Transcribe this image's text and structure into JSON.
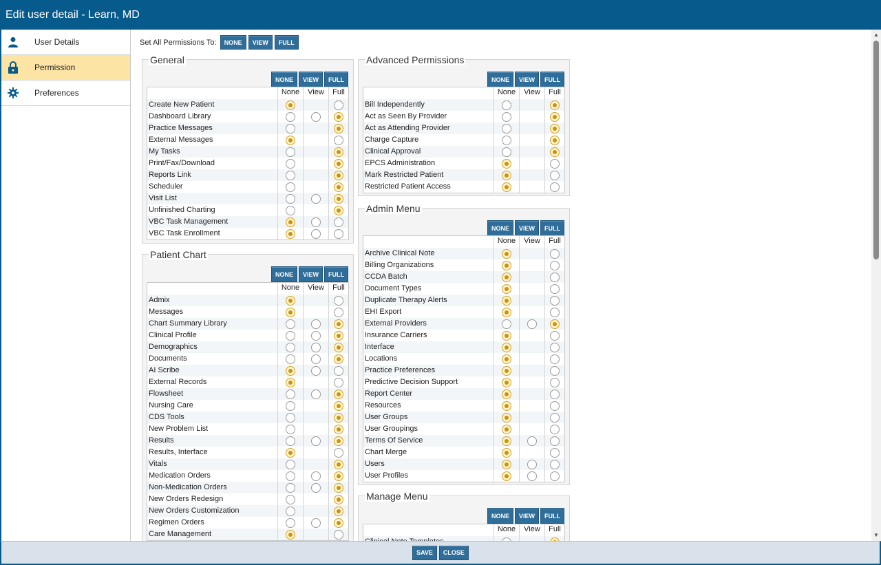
{
  "window": {
    "title": "Edit user detail - Learn, MD"
  },
  "sidebar": {
    "items": [
      {
        "label": "User Details",
        "icon": "person-icon"
      },
      {
        "label": "Permission",
        "icon": "lock-icon"
      },
      {
        "label": "Preferences",
        "icon": "gear-icon"
      }
    ]
  },
  "set_all": {
    "label": "Set All Permissions To:",
    "none": "NONE",
    "view": "VIEW",
    "full": "FULL"
  },
  "columns": {
    "none": "None",
    "view": "View",
    "full": "Full"
  },
  "buttons": {
    "none": "NONE",
    "view": "VIEW",
    "full": "FULL"
  },
  "colors": {
    "brand": "#065a8c",
    "active_tab": "#fbe4a4",
    "button": "#2f6e9a",
    "radio_selected": "#c9930f"
  },
  "sections": {
    "general": {
      "title": "General",
      "rows": [
        {
          "name": "Create New Patient",
          "opts": [
            "none",
            "full"
          ],
          "sel": "none"
        },
        {
          "name": "Dashboard Library",
          "opts": [
            "none",
            "view",
            "full"
          ],
          "sel": "full"
        },
        {
          "name": "Practice Messages",
          "opts": [
            "none",
            "full"
          ],
          "sel": "full"
        },
        {
          "name": "External Messages",
          "opts": [
            "none",
            "full"
          ],
          "sel": "none"
        },
        {
          "name": "My Tasks",
          "opts": [
            "none",
            "full"
          ],
          "sel": "full"
        },
        {
          "name": "Print/Fax/Download",
          "opts": [
            "none",
            "full"
          ],
          "sel": "full"
        },
        {
          "name": "Reports Link",
          "opts": [
            "none",
            "full"
          ],
          "sel": "full"
        },
        {
          "name": "Scheduler",
          "opts": [
            "none",
            "full"
          ],
          "sel": "full"
        },
        {
          "name": "Visit List",
          "opts": [
            "none",
            "view",
            "full"
          ],
          "sel": "full"
        },
        {
          "name": "Unfinished Charting",
          "opts": [
            "none",
            "full"
          ],
          "sel": "full"
        },
        {
          "name": "VBC Task Management",
          "opts": [
            "none",
            "view",
            "full"
          ],
          "sel": "none"
        },
        {
          "name": "VBC Task Enrollment",
          "opts": [
            "none",
            "view",
            "full"
          ],
          "sel": "none"
        }
      ]
    },
    "patient_chart": {
      "title": "Patient Chart",
      "rows": [
        {
          "name": "Admix",
          "opts": [
            "none",
            "full"
          ],
          "sel": "none"
        },
        {
          "name": "Messages",
          "opts": [
            "none",
            "full"
          ],
          "sel": "none"
        },
        {
          "name": "Chart Summary Library",
          "opts": [
            "none",
            "view",
            "full"
          ],
          "sel": "full"
        },
        {
          "name": "Clinical Profile",
          "opts": [
            "none",
            "view",
            "full"
          ],
          "sel": "full"
        },
        {
          "name": "Demographics",
          "opts": [
            "none",
            "view",
            "full"
          ],
          "sel": "full"
        },
        {
          "name": "Documents",
          "opts": [
            "none",
            "view",
            "full"
          ],
          "sel": "full"
        },
        {
          "name": "AI Scribe",
          "opts": [
            "none",
            "view",
            "full"
          ],
          "sel": "none"
        },
        {
          "name": "External Records",
          "opts": [
            "none",
            "full"
          ],
          "sel": "none"
        },
        {
          "name": "Flowsheet",
          "opts": [
            "none",
            "view",
            "full"
          ],
          "sel": "full"
        },
        {
          "name": "Nursing Care",
          "opts": [
            "none",
            "full"
          ],
          "sel": "full"
        },
        {
          "name": "CDS Tools",
          "opts": [
            "none",
            "full"
          ],
          "sel": "full"
        },
        {
          "name": "New Problem List",
          "opts": [
            "none",
            "full"
          ],
          "sel": "full"
        },
        {
          "name": "Results",
          "opts": [
            "none",
            "view",
            "full"
          ],
          "sel": "full"
        },
        {
          "name": "Results, Interface",
          "opts": [
            "none",
            "full"
          ],
          "sel": "none"
        },
        {
          "name": "Vitals",
          "opts": [
            "none",
            "full"
          ],
          "sel": "full"
        },
        {
          "name": "Medication Orders",
          "opts": [
            "none",
            "view",
            "full"
          ],
          "sel": "full"
        },
        {
          "name": "Non-Medication Orders",
          "opts": [
            "none",
            "view",
            "full"
          ],
          "sel": "full"
        },
        {
          "name": "New Orders Redesign",
          "opts": [
            "none",
            "full"
          ],
          "sel": "full"
        },
        {
          "name": "New Orders Customization",
          "opts": [
            "none",
            "full"
          ],
          "sel": "full"
        },
        {
          "name": "Regimen Orders",
          "opts": [
            "none",
            "view",
            "full"
          ],
          "sel": "full"
        },
        {
          "name": "Care Management",
          "opts": [
            "none",
            "full"
          ],
          "sel": "none"
        }
      ]
    },
    "advanced": {
      "title": "Advanced Permissions",
      "rows": [
        {
          "name": "Bill Independently",
          "opts": [
            "none",
            "full"
          ],
          "sel": "full"
        },
        {
          "name": "Act as Seen By Provider",
          "opts": [
            "none",
            "full"
          ],
          "sel": "full"
        },
        {
          "name": "Act as Attending Provider",
          "opts": [
            "none",
            "full"
          ],
          "sel": "full"
        },
        {
          "name": "Charge Capture",
          "opts": [
            "none",
            "full"
          ],
          "sel": "full"
        },
        {
          "name": "Clinical Approval",
          "opts": [
            "none",
            "full"
          ],
          "sel": "full"
        },
        {
          "name": "EPCS Administration",
          "opts": [
            "none",
            "full"
          ],
          "sel": "none"
        },
        {
          "name": "Mark Restricted Patient",
          "opts": [
            "none",
            "full"
          ],
          "sel": "none"
        },
        {
          "name": "Restricted Patient Access",
          "opts": [
            "none",
            "full"
          ],
          "sel": "none"
        }
      ]
    },
    "admin": {
      "title": "Admin Menu",
      "rows": [
        {
          "name": "Archive Clinical Note",
          "opts": [
            "none",
            "full"
          ],
          "sel": "none"
        },
        {
          "name": "Billing Organizations",
          "opts": [
            "none",
            "full"
          ],
          "sel": "none"
        },
        {
          "name": "CCDA Batch",
          "opts": [
            "none",
            "full"
          ],
          "sel": "none"
        },
        {
          "name": "Document Types",
          "opts": [
            "none",
            "full"
          ],
          "sel": "none"
        },
        {
          "name": "Duplicate Therapy Alerts",
          "opts": [
            "none",
            "full"
          ],
          "sel": "none"
        },
        {
          "name": "EHI Export",
          "opts": [
            "none",
            "full"
          ],
          "sel": "none"
        },
        {
          "name": "External Providers",
          "opts": [
            "none",
            "view",
            "full"
          ],
          "sel": "full"
        },
        {
          "name": "Insurance Carriers",
          "opts": [
            "none",
            "full"
          ],
          "sel": "none"
        },
        {
          "name": "Interface",
          "opts": [
            "none",
            "full"
          ],
          "sel": "none"
        },
        {
          "name": "Locations",
          "opts": [
            "none",
            "full"
          ],
          "sel": "none"
        },
        {
          "name": "Practice Preferences",
          "opts": [
            "none",
            "full"
          ],
          "sel": "none"
        },
        {
          "name": "Predictive Decision Support",
          "opts": [
            "none",
            "full"
          ],
          "sel": "none"
        },
        {
          "name": "Report Center",
          "opts": [
            "none",
            "full"
          ],
          "sel": "none"
        },
        {
          "name": "Resources",
          "opts": [
            "none",
            "full"
          ],
          "sel": "none"
        },
        {
          "name": "User Groups",
          "opts": [
            "none",
            "full"
          ],
          "sel": "none"
        },
        {
          "name": "User Groupings",
          "opts": [
            "none",
            "full"
          ],
          "sel": "none"
        },
        {
          "name": "Terms Of Service",
          "opts": [
            "none",
            "view",
            "full"
          ],
          "sel": "none"
        },
        {
          "name": "Chart Merge",
          "opts": [
            "none",
            "full"
          ],
          "sel": "none"
        },
        {
          "name": "Users",
          "opts": [
            "none",
            "view",
            "full"
          ],
          "sel": "none"
        },
        {
          "name": "User Profiles",
          "opts": [
            "none",
            "view",
            "full"
          ],
          "sel": "none"
        }
      ]
    },
    "manage": {
      "title": "Manage Menu",
      "rows": [
        {
          "name": "Clinical Note Templates",
          "opts": [
            "none",
            "full"
          ],
          "sel": "full"
        }
      ]
    }
  },
  "footer": {
    "save": "SAVE",
    "close": "CLOSE"
  }
}
